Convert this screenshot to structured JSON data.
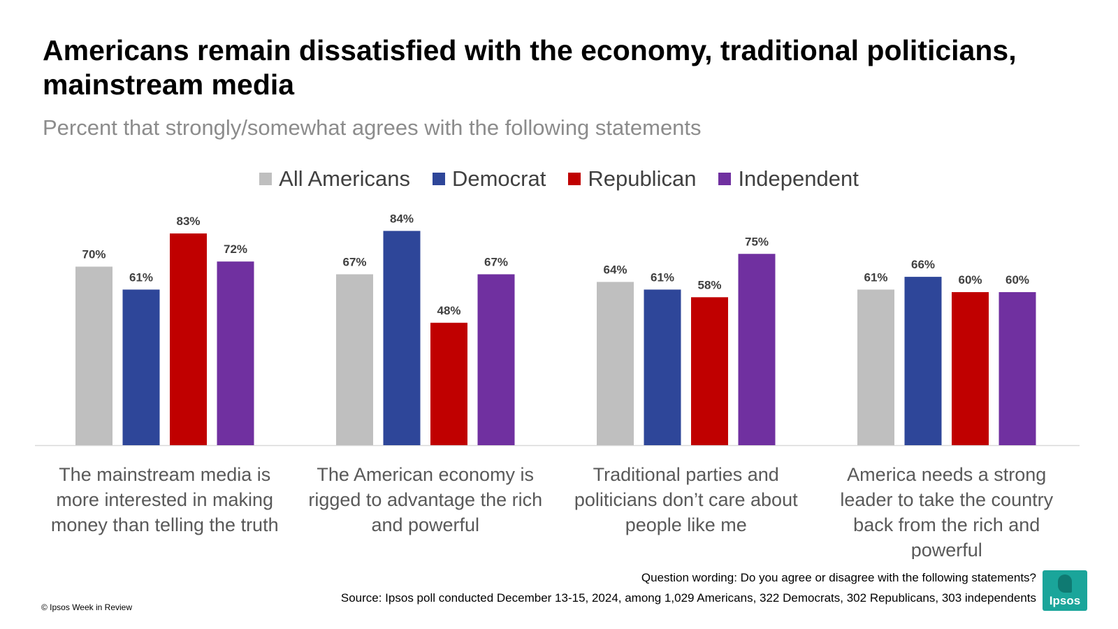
{
  "header": {
    "title": "Americans remain dissatisfied with the economy, traditional politicians, mainstream media",
    "subtitle": "Percent that strongly/somewhat agrees with the following statements"
  },
  "legend": [
    {
      "label": "All Americans",
      "color": "#bfbfbf"
    },
    {
      "label": "Democrat",
      "color": "#2e4699"
    },
    {
      "label": "Republican",
      "color": "#c00000"
    },
    {
      "label": "Independent",
      "color": "#7030a0"
    }
  ],
  "chart_data": {
    "type": "bar",
    "title": "Americans remain dissatisfied with the economy, traditional politicians, mainstream media",
    "subtitle": "Percent that strongly/somewhat agrees with the following statements",
    "categories": [
      "The mainstream media is more interested in making money than telling the truth",
      "The American economy is rigged to advantage the rich and powerful",
      "Traditional parties and politicians don’t care about people like me",
      "America needs a strong leader to take the country back from the rich and powerful"
    ],
    "category_lines": [
      [
        "The mainstream media is",
        "more interested in making",
        "money than telling the truth"
      ],
      [
        "The American economy is",
        "rigged to advantage the rich",
        "and powerful"
      ],
      [
        "Traditional parties and",
        "politicians don’t care about",
        "people like me"
      ],
      [
        "America needs a strong",
        "leader to take the country",
        "back from the rich and",
        "powerful"
      ]
    ],
    "series": [
      {
        "name": "All Americans",
        "color": "#bfbfbf",
        "values": [
          70,
          67,
          64,
          61
        ]
      },
      {
        "name": "Democrat",
        "color": "#2e4699",
        "values": [
          61,
          84,
          61,
          66
        ]
      },
      {
        "name": "Republican",
        "color": "#c00000",
        "values": [
          83,
          48,
          58,
          60
        ]
      },
      {
        "name": "Independent",
        "color": "#7030a0",
        "values": [
          72,
          67,
          75,
          60
        ]
      }
    ],
    "value_suffix": "%",
    "xlabel": "",
    "ylabel": "",
    "ylim": [
      0,
      100
    ],
    "grid": false,
    "legend_position": "top"
  },
  "footer": {
    "question": "Question wording:  Do you agree or disagree with the following statements?",
    "source": "Source: Ipsos poll conducted December 13-15, 2024, among 1,029 Americans, 322 Democrats, 302 Republicans, 303 independents",
    "copyright": "© Ipsos Week in Review",
    "logo_text": "Ipsos"
  }
}
